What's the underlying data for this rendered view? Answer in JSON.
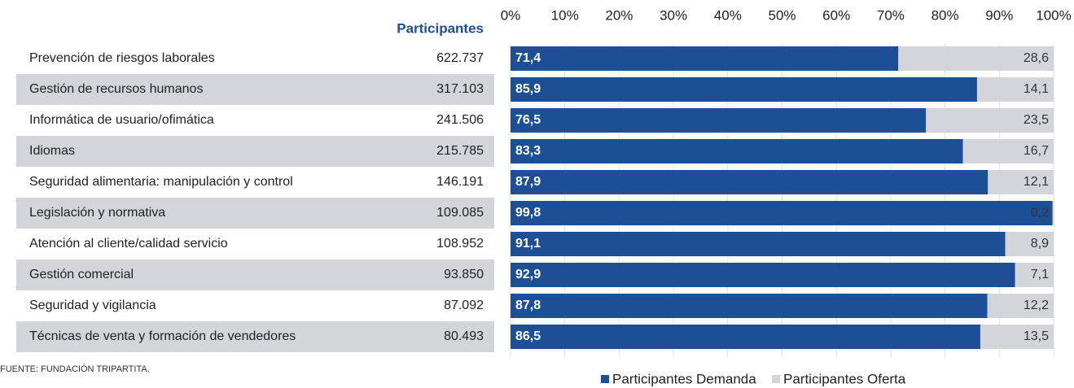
{
  "chart_data": {
    "type": "stacked-bar-horizontal",
    "table_header": "Participantes",
    "categories": [
      "Prevención de riesgos laborales",
      "Gestión de recursos humanos",
      "Informática de usuario/ofimática",
      "Idiomas",
      "Seguridad alimentaria: manipulación y control",
      "Legislación y normativa",
      "Atención al cliente/calidad servicio",
      "Gestión comercial",
      "Seguridad y vigilancia",
      "Técnicas de venta y formación de vendedores"
    ],
    "participants": [
      "622.737",
      "317.103",
      "241.506",
      "215.785",
      "146.191",
      "109.085",
      "108.952",
      "93.850",
      "87.092",
      "80.493"
    ],
    "series": [
      {
        "name": "Participantes Demanda",
        "color": "#1c4f96",
        "values": [
          71.4,
          85.9,
          76.5,
          83.3,
          87.9,
          99.8,
          91.1,
          92.9,
          87.8,
          86.5
        ],
        "value_labels": [
          "71,4",
          "85,9",
          "76,5",
          "83,3",
          "87,9",
          "99,8",
          "91,1",
          "92,9",
          "87,8",
          "86,5"
        ]
      },
      {
        "name": "Participantes Oferta",
        "color": "#d3d5da",
        "values": [
          28.6,
          14.1,
          23.5,
          16.7,
          12.1,
          0.2,
          8.9,
          7.1,
          12.2,
          13.5
        ],
        "value_labels": [
          "28,6",
          "14,1",
          "23,5",
          "16,7",
          "12,1",
          "0,2",
          "8,9",
          "7,1",
          "12,2",
          "13,5"
        ]
      }
    ],
    "xlim": [
      0,
      100
    ],
    "xticks": [
      {
        "value": 0,
        "label": "0%"
      },
      {
        "value": 10,
        "label": "10%"
      },
      {
        "value": 20,
        "label": "20%"
      },
      {
        "value": 30,
        "label": "30%"
      },
      {
        "value": 40,
        "label": "40%"
      },
      {
        "value": 50,
        "label": "50%"
      },
      {
        "value": 60,
        "label": "60%"
      },
      {
        "value": 70,
        "label": "70%"
      },
      {
        "value": 80,
        "label": "80%"
      },
      {
        "value": 90,
        "label": "90%"
      },
      {
        "value": 100,
        "label": "100%"
      }
    ],
    "grid": true,
    "source": "FUENTE: FUNDACIÓN TRIPARTITA."
  }
}
